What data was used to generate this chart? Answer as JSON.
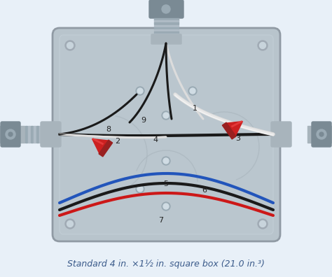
{
  "fig_bg": "#ffffff",
  "outer_bg": "#f0f4f8",
  "box_face": "#b8c4cc",
  "box_border": "#909aa4",
  "box_shadow": "#a0aab4",
  "connector_body": "#a8b4bc",
  "connector_dark": "#7a8a94",
  "connector_light": "#c8d4dc",
  "wire_black": "#1a1a1a",
  "wire_white": "#dcdcdc",
  "wire_white_hi": "#f0f0f0",
  "wire_red": "#cc1818",
  "wire_blue": "#2255bb",
  "cap_red": "#cc2020",
  "cap_dark": "#992020",
  "cap_light": "#ee4444",
  "label_color": "#222222",
  "title_color": "#3a5a8a",
  "title": "Standard 4 in. ×1½ in. square box (21.0 in.³)",
  "title_fontsize": 9.0,
  "lw_wire": 2.2,
  "lw_wire_thick": 3.0
}
